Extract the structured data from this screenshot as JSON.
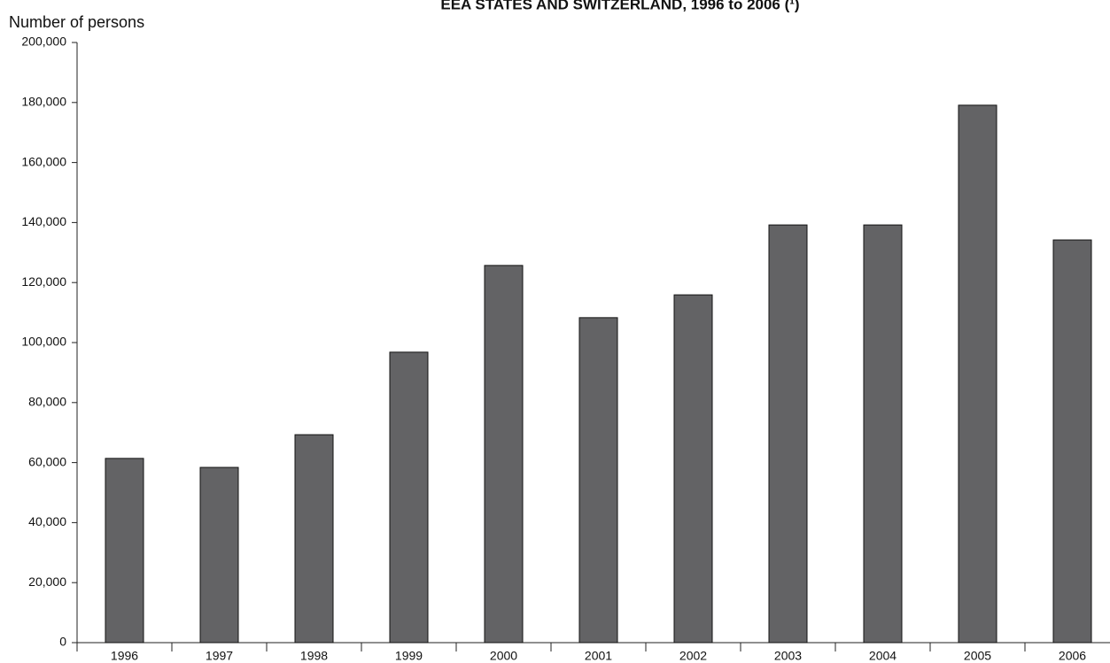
{
  "chart_data": {
    "type": "bar",
    "title": "EEA STATES AND SWITZERLAND, 1996 to 2006 (¹)",
    "y_label": "Number of persons",
    "categories": [
      "1996",
      "1997",
      "1998",
      "1999",
      "2000",
      "2001",
      "2002",
      "2003",
      "2004",
      "2005",
      "2006"
    ],
    "values": [
      61400,
      58400,
      69300,
      96800,
      125700,
      108300,
      115900,
      139200,
      139200,
      179100,
      134200
    ],
    "color": "#636365",
    "ylim": [
      0,
      200000
    ],
    "yticks": [
      0,
      {
        "value": 20000,
        "label": "20,000"
      },
      {
        "value": 40000,
        "label": "40,000"
      },
      {
        "value": 60000,
        "label": "60,000"
      },
      {
        "value": 80000,
        "label": "80,000"
      },
      {
        "value": 100000,
        "label": "100,000"
      },
      {
        "value": 120000,
        "label": "120,000"
      },
      {
        "value": 140000,
        "label": "140,000"
      },
      {
        "value": 160000,
        "label": "160,000"
      },
      {
        "value": 180000,
        "label": "180,000"
      },
      {
        "value": 200000,
        "label": "200,000"
      }
    ],
    "grid": false
  }
}
